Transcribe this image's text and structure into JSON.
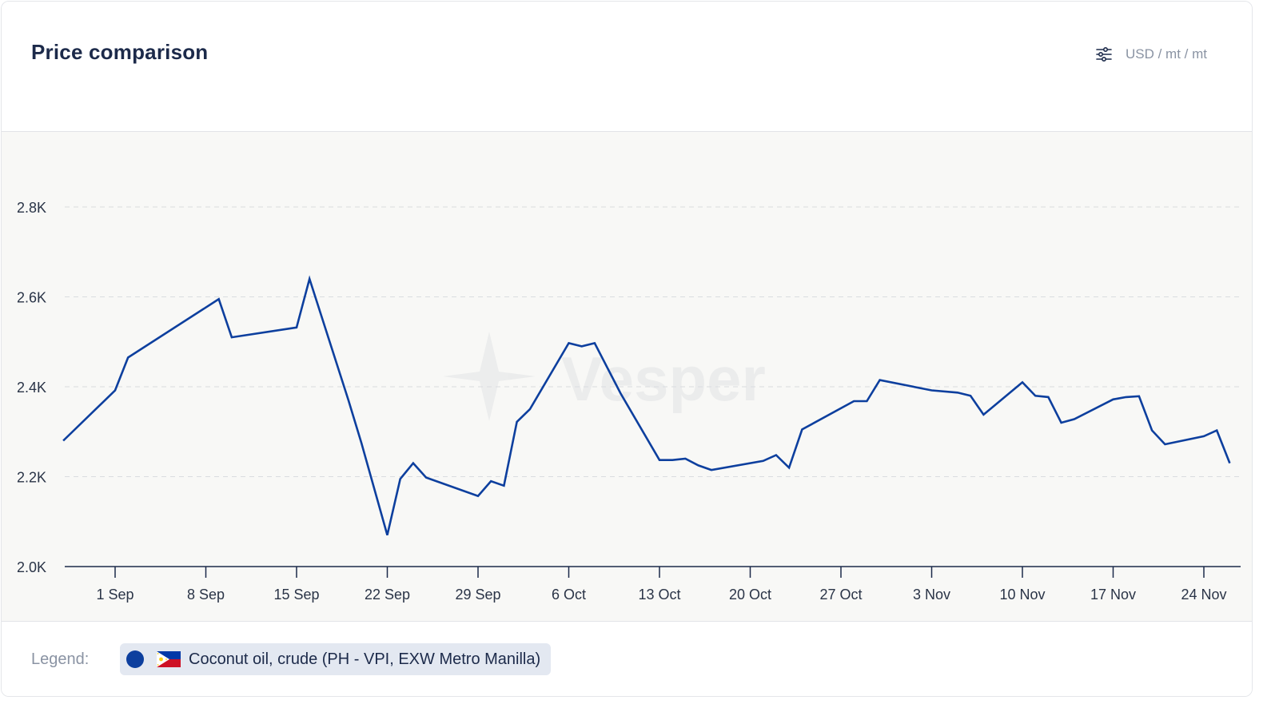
{
  "header": {
    "title": "Price comparison",
    "units_label": "USD / mt / mt",
    "units_icon": "sliders-icon"
  },
  "legend": {
    "label": "Legend:",
    "items": [
      {
        "name": "Coconut oil, crude (PH - VPI, EXW Metro Manilla)",
        "color": "#0d3f9e",
        "flag": "philippines-flag-icon"
      }
    ]
  },
  "watermark": "Vesper",
  "chart_data": {
    "type": "line",
    "ylim": [
      2000,
      2800
    ],
    "yticks": [
      2000,
      2200,
      2400,
      2600,
      2800
    ],
    "ytick_labels": [
      "2.0K",
      "2.2K",
      "2.4K",
      "2.6K",
      "2.8K"
    ],
    "xlim": [
      "2025-08-27",
      "2025-11-27"
    ],
    "xticks": [
      "2025-09-01",
      "2025-09-08",
      "2025-09-15",
      "2025-09-22",
      "2025-09-29",
      "2025-10-06",
      "2025-10-13",
      "2025-10-20",
      "2025-10-27",
      "2025-11-03",
      "2025-11-10",
      "2025-11-17",
      "2025-11-24"
    ],
    "xtick_labels": [
      "1 Sep",
      "8 Sep",
      "15 Sep",
      "22 Sep",
      "29 Sep",
      "6 Oct",
      "13 Oct",
      "20 Oct",
      "27 Oct",
      "3 Nov",
      "10 Nov",
      "17 Nov",
      "24 Nov"
    ],
    "grid": true,
    "series": [
      {
        "name": "Coconut oil, crude (PH - VPI, EXW Metro Manilla)",
        "color": "#0d3f9e",
        "points": [
          [
            "2025-08-28",
            2280
          ],
          [
            "2025-09-01",
            2392
          ],
          [
            "2025-09-02",
            2465
          ],
          [
            "2025-09-09",
            2595
          ],
          [
            "2025-09-10",
            2510
          ],
          [
            "2025-09-15",
            2532
          ],
          [
            "2025-09-16",
            2640
          ],
          [
            "2025-09-19",
            2370
          ],
          [
            "2025-09-20",
            2275
          ],
          [
            "2025-09-22",
            2070
          ],
          [
            "2025-09-23",
            2195
          ],
          [
            "2025-09-24",
            2230
          ],
          [
            "2025-09-25",
            2198
          ],
          [
            "2025-09-29",
            2157
          ],
          [
            "2025-09-30",
            2190
          ],
          [
            "2025-10-01",
            2180
          ],
          [
            "2025-10-02",
            2322
          ],
          [
            "2025-10-03",
            2350
          ],
          [
            "2025-10-06",
            2497
          ],
          [
            "2025-10-07",
            2490
          ],
          [
            "2025-10-08",
            2497
          ],
          [
            "2025-10-10",
            2385
          ],
          [
            "2025-10-13",
            2237
          ],
          [
            "2025-10-14",
            2237
          ],
          [
            "2025-10-15",
            2240
          ],
          [
            "2025-10-16",
            2225
          ],
          [
            "2025-10-17",
            2215
          ],
          [
            "2025-10-21",
            2235
          ],
          [
            "2025-10-22",
            2248
          ],
          [
            "2025-10-23",
            2220
          ],
          [
            "2025-10-24",
            2305
          ],
          [
            "2025-10-28",
            2368
          ],
          [
            "2025-10-29",
            2368
          ],
          [
            "2025-10-30",
            2415
          ],
          [
            "2025-11-03",
            2392
          ],
          [
            "2025-11-05",
            2387
          ],
          [
            "2025-11-06",
            2380
          ],
          [
            "2025-11-07",
            2338
          ],
          [
            "2025-11-10",
            2410
          ],
          [
            "2025-11-11",
            2380
          ],
          [
            "2025-11-12",
            2377
          ],
          [
            "2025-11-13",
            2320
          ],
          [
            "2025-11-14",
            2328
          ],
          [
            "2025-11-17",
            2372
          ],
          [
            "2025-11-18",
            2377
          ],
          [
            "2025-11-19",
            2379
          ],
          [
            "2025-11-20",
            2303
          ],
          [
            "2025-11-21",
            2272
          ],
          [
            "2025-11-24",
            2290
          ],
          [
            "2025-11-25",
            2303
          ],
          [
            "2025-11-26",
            2230
          ]
        ]
      }
    ]
  }
}
